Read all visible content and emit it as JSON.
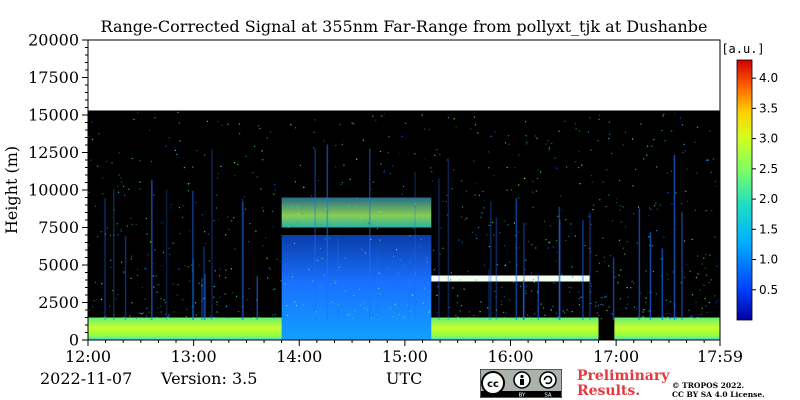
{
  "chart_data": {
    "type": "heatmap",
    "title": "Range-Corrected Signal at 355nm Far-Range from pollyxt_tjk at Dushanbe",
    "ylabel": "Height (m)",
    "xlabel": "UTC",
    "x_ticks": [
      "12:00",
      "13:00",
      "14:00",
      "15:00",
      "16:00",
      "17:00",
      "17:59"
    ],
    "y_ticks": [
      "0",
      "2500",
      "5000",
      "7500",
      "10000",
      "12500",
      "15000",
      "17500",
      "20000"
    ],
    "xlim": [
      "12:00",
      "17:59"
    ],
    "ylim": [
      0,
      20000
    ],
    "data_top_height_m": 15300,
    "colorbar": {
      "label": "[a.u.]",
      "range": [
        0.0,
        4.3
      ],
      "ticks": [
        "0.5",
        "1.0",
        "1.5",
        "2.0",
        "2.5",
        "3.0",
        "3.5",
        "4.0"
      ],
      "colormap": "jet"
    },
    "features": [
      {
        "name": "boundary layer",
        "from": "12:00",
        "to": "17:59",
        "top_m": 1500,
        "level": 2.4
      },
      {
        "name": "dust layer",
        "from": "13:50",
        "to": "15:15",
        "top_m": 7000,
        "level": 1.2
      },
      {
        "name": "cirrus",
        "from": "13:50",
        "to": "15:15",
        "base_m": 7500,
        "top_m": 9500,
        "level": 2.0
      },
      {
        "name": "cloud",
        "from": "15:15",
        "to": "16:45",
        "base_m": 3900,
        "top_m": 4300,
        "level": 3.2
      },
      {
        "name": "no data",
        "from": "16:50",
        "to": "16:59"
      }
    ]
  },
  "footer": {
    "date": "2022-11-07",
    "version": "Version: 3.5",
    "preliminary_line1": "Preliminary",
    "preliminary_line2": "Results.",
    "credit_line1": "© TROPOS 2022.",
    "credit_line2": "CC BY SA 4.0 License.",
    "cc_text": "cc",
    "by_text": "BY",
    "sa_text": "SA"
  },
  "colors": {
    "background": "#000000",
    "preliminary": "#e8383d"
  }
}
